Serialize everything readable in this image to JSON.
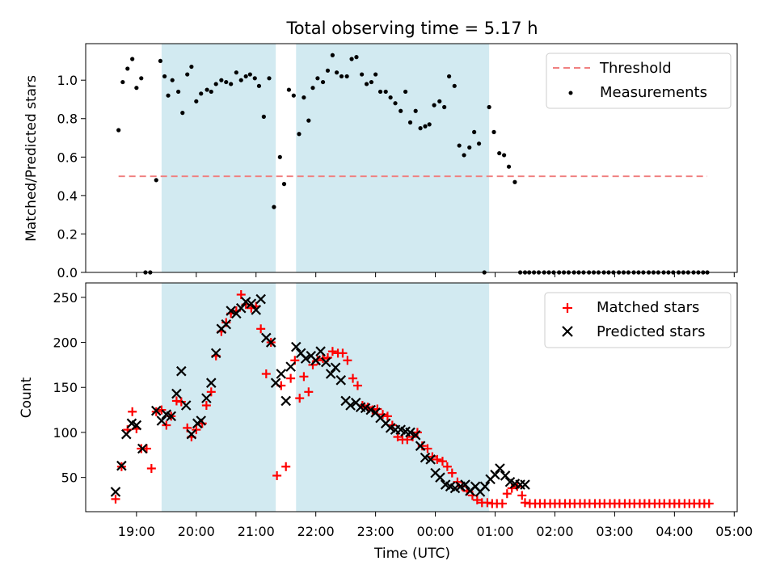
{
  "figure_title": "Total observing time = 5.17 h",
  "chart_data": [
    {
      "type": "scatter",
      "panel": "top",
      "ylabel": "Matched/Predicted stars",
      "xlabel": "",
      "ylim": [
        0,
        1.19
      ],
      "yticks": [
        "0.0",
        "0.2",
        "0.4",
        "0.6",
        "0.8",
        "1.0"
      ],
      "legend_position": "upper right",
      "threshold": {
        "name": "Threshold",
        "value": 0.5,
        "x_start": 18.7,
        "x_end": 28.55,
        "color": "#f08080"
      },
      "series": [
        {
          "name": "Measurements",
          "color": "#000000",
          "x": [
            18.7,
            18.77,
            18.85,
            18.93,
            19.0,
            19.08,
            19.15,
            19.23,
            19.33,
            19.4,
            19.47,
            19.53,
            19.6,
            19.7,
            19.77,
            19.85,
            19.92,
            20.0,
            20.08,
            20.18,
            20.25,
            20.33,
            20.42,
            20.5,
            20.58,
            20.67,
            20.75,
            20.83,
            20.9,
            20.98,
            21.05,
            21.13,
            21.22,
            21.3,
            21.4,
            21.47,
            21.55,
            21.63,
            21.72,
            21.8,
            21.88,
            21.95,
            22.03,
            22.12,
            22.2,
            22.28,
            22.35,
            22.43,
            22.52,
            22.6,
            22.68,
            22.77,
            22.85,
            22.93,
            23.0,
            23.08,
            23.17,
            23.25,
            23.33,
            23.42,
            23.5,
            23.58,
            23.67,
            23.75,
            23.83,
            23.9,
            23.98,
            24.07,
            24.15,
            24.23,
            24.32,
            24.4,
            24.48,
            24.57,
            24.65,
            24.73,
            24.82,
            24.9,
            24.98,
            25.07,
            25.15,
            25.23,
            25.33,
            25.42,
            25.5,
            25.57,
            25.65,
            25.73,
            25.82,
            25.9,
            25.98,
            26.07,
            26.15,
            26.23,
            26.32,
            26.4,
            26.48,
            26.57,
            26.65,
            26.73,
            26.82,
            26.9,
            26.98,
            27.07,
            27.15,
            27.23,
            27.32,
            27.4,
            27.48,
            27.57,
            27.65,
            27.73,
            27.82,
            27.9,
            27.98,
            28.07,
            28.15,
            28.23,
            28.32,
            28.4,
            28.48,
            28.55
          ],
          "y": [
            0.74,
            0.99,
            1.06,
            1.11,
            0.96,
            1.01,
            0.0,
            0.0,
            0.48,
            1.1,
            1.02,
            0.92,
            1.0,
            0.94,
            0.83,
            1.03,
            1.07,
            0.89,
            0.93,
            0.95,
            0.94,
            0.98,
            1.0,
            0.99,
            0.98,
            1.04,
            1.0,
            1.02,
            1.03,
            1.01,
            0.97,
            0.81,
            1.01,
            0.34,
            0.6,
            0.46,
            0.95,
            0.92,
            0.72,
            0.91,
            0.79,
            0.96,
            1.01,
            0.99,
            1.05,
            1.13,
            1.04,
            1.02,
            1.02,
            1.11,
            1.12,
            1.03,
            0.98,
            0.99,
            1.03,
            0.94,
            0.94,
            0.91,
            0.88,
            0.84,
            0.94,
            0.78,
            0.84,
            0.75,
            0.76,
            0.77,
            0.87,
            0.89,
            0.86,
            1.02,
            0.97,
            0.66,
            0.61,
            0.65,
            0.73,
            0.67,
            0.0,
            0.86,
            0.73,
            0.62,
            0.61,
            0.55,
            0.47,
            0.0,
            0.0,
            0.0,
            0.0,
            0.0,
            0.0,
            0.0,
            0.0,
            0.0,
            0.0,
            0.0,
            0.0,
            0.0,
            0.0,
            0.0,
            0.0,
            0.0,
            0.0,
            0.0,
            0.0,
            0.0,
            0.0,
            0.0,
            0.0,
            0.0,
            0.0,
            0.0,
            0.0,
            0.0,
            0.0,
            0.0,
            0.0,
            0.0,
            0.0,
            0.0,
            0.0,
            0.0,
            0.0,
            0.0
          ]
        }
      ]
    },
    {
      "type": "scatter",
      "panel": "bottom",
      "ylabel": "Count",
      "xlabel": "Time (UTC)",
      "ylim": [
        12,
        266
      ],
      "yticks": [
        "50",
        "100",
        "150",
        "200",
        "250"
      ],
      "legend_position": "upper right",
      "series": [
        {
          "name": "Matched stars",
          "marker": "plus",
          "color": "#ff0000",
          "x": [
            18.65,
            18.75,
            18.85,
            18.93,
            19.0,
            19.08,
            19.17,
            19.25,
            19.33,
            19.42,
            19.5,
            19.58,
            19.67,
            19.75,
            19.85,
            19.92,
            20.0,
            20.1,
            20.17,
            20.25,
            20.33,
            20.42,
            20.5,
            20.58,
            20.67,
            20.75,
            20.83,
            20.92,
            21.0,
            21.08,
            21.17,
            21.25,
            21.35,
            21.42,
            21.5,
            21.58,
            21.65,
            21.73,
            21.8,
            21.88,
            21.95,
            22.03,
            22.12,
            22.2,
            22.28,
            22.37,
            22.45,
            22.53,
            22.62,
            22.7,
            22.78,
            22.87,
            22.95,
            23.03,
            23.12,
            23.2,
            23.28,
            23.37,
            23.45,
            23.53,
            23.62,
            23.7,
            23.78,
            23.87,
            23.95,
            24.03,
            24.12,
            24.2,
            24.28,
            24.37,
            24.45,
            24.53,
            24.62,
            24.7,
            24.78,
            24.87,
            24.95,
            25.03,
            25.12,
            25.2,
            25.28,
            25.37,
            25.45,
            25.5,
            25.58,
            25.67,
            25.75,
            25.83,
            25.92,
            26.0,
            26.08,
            26.17,
            26.25,
            26.33,
            26.42,
            26.5,
            26.58,
            26.67,
            26.75,
            26.83,
            26.92,
            27.0,
            27.08,
            27.17,
            27.25,
            27.33,
            27.42,
            27.5,
            27.58,
            27.67,
            27.75,
            27.83,
            27.92,
            28.0,
            28.08,
            28.17,
            28.25,
            28.33,
            28.42,
            28.5,
            28.58
          ],
          "y": [
            26,
            62,
            103,
            123,
            104,
            82,
            82,
            60,
            123,
            125,
            108,
            118,
            135,
            134,
            105,
            95,
            103,
            110,
            130,
            145,
            185,
            212,
            222,
            232,
            235,
            253,
            242,
            238,
            240,
            215,
            165,
            200,
            52,
            152,
            62,
            160,
            180,
            138,
            162,
            145,
            175,
            180,
            182,
            183,
            190,
            188,
            188,
            180,
            160,
            152,
            130,
            128,
            125,
            126,
            120,
            118,
            108,
            95,
            92,
            92,
            95,
            100,
            85,
            82,
            73,
            70,
            68,
            62,
            55,
            45,
            40,
            35,
            30,
            25,
            22,
            22,
            21,
            21,
            21,
            32,
            38,
            40,
            30,
            22,
            21,
            21,
            21,
            21,
            21,
            21,
            21,
            21,
            21,
            21,
            21,
            21,
            21,
            21,
            21,
            21,
            21,
            21,
            21,
            21,
            21,
            21,
            21,
            21,
            21,
            21,
            21,
            21,
            21,
            21,
            21,
            21,
            21,
            21,
            21,
            21,
            21
          ]
        },
        {
          "name": "Predicted stars",
          "marker": "x",
          "color": "#000000",
          "x": [
            18.65,
            18.75,
            18.83,
            18.92,
            19.0,
            19.1,
            19.33,
            19.42,
            19.5,
            19.58,
            19.67,
            19.75,
            19.83,
            19.92,
            20.02,
            20.08,
            20.17,
            20.25,
            20.33,
            20.42,
            20.5,
            20.58,
            20.67,
            20.75,
            20.83,
            20.92,
            21.0,
            21.08,
            21.17,
            21.25,
            21.33,
            21.42,
            21.5,
            21.58,
            21.67,
            21.75,
            21.83,
            21.92,
            22.0,
            22.08,
            22.17,
            22.25,
            22.33,
            22.42,
            22.5,
            22.58,
            22.67,
            22.75,
            22.83,
            22.92,
            23.0,
            23.08,
            23.17,
            23.25,
            23.33,
            23.42,
            23.5,
            23.58,
            23.67,
            23.75,
            23.83,
            23.92,
            24.0,
            24.08,
            24.17,
            24.25,
            24.33,
            24.42,
            24.5,
            24.58,
            24.67,
            24.75,
            24.83,
            24.92,
            25.0,
            25.08,
            25.17,
            25.25,
            25.33,
            25.42,
            25.5
          ],
          "y": [
            34,
            63,
            98,
            110,
            108,
            82,
            124,
            113,
            120,
            118,
            143,
            168,
            130,
            98,
            110,
            113,
            138,
            155,
            188,
            215,
            220,
            235,
            232,
            238,
            245,
            243,
            236,
            248,
            205,
            200,
            155,
            165,
            135,
            173,
            195,
            188,
            182,
            185,
            180,
            190,
            178,
            165,
            172,
            158,
            135,
            130,
            133,
            128,
            127,
            125,
            122,
            116,
            110,
            105,
            103,
            103,
            101,
            100,
            97,
            85,
            72,
            70,
            55,
            50,
            42,
            40,
            38,
            40,
            42,
            35,
            40,
            34,
            40,
            48,
            53,
            60,
            52,
            45,
            43,
            42,
            42
          ]
        }
      ]
    }
  ],
  "shaded_intervals": [
    [
      19.42,
      21.33
    ],
    [
      21.67,
      24.9
    ]
  ],
  "shade_color": "#add8e6",
  "x_axis": {
    "ticks": [
      19,
      20,
      21,
      22,
      23,
      24,
      25,
      26,
      27,
      28,
      29
    ],
    "tick_labels": [
      "19:00",
      "20:00",
      "21:00",
      "22:00",
      "23:00",
      "00:00",
      "01:00",
      "02:00",
      "03:00",
      "04:00",
      "05:00"
    ],
    "xlim": [
      18.15,
      29.05
    ]
  }
}
